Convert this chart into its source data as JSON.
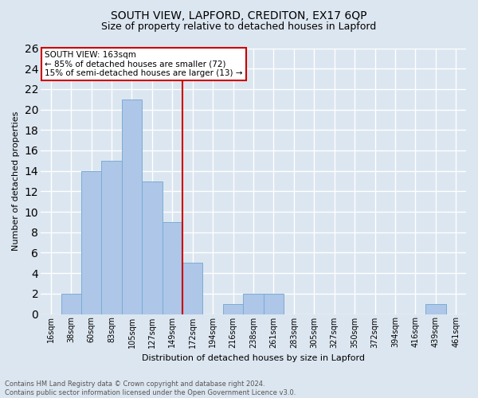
{
  "title": "SOUTH VIEW, LAPFORD, CREDITON, EX17 6QP",
  "subtitle": "Size of property relative to detached houses in Lapford",
  "xlabel": "Distribution of detached houses by size in Lapford",
  "ylabel": "Number of detached properties",
  "footer_line1": "Contains HM Land Registry data © Crown copyright and database right 2024.",
  "footer_line2": "Contains public sector information licensed under the Open Government Licence v3.0.",
  "categories": [
    "16sqm",
    "38sqm",
    "60sqm",
    "83sqm",
    "105sqm",
    "127sqm",
    "149sqm",
    "172sqm",
    "194sqm",
    "216sqm",
    "238sqm",
    "261sqm",
    "283sqm",
    "305sqm",
    "327sqm",
    "350sqm",
    "372sqm",
    "394sqm",
    "416sqm",
    "439sqm",
    "461sqm"
  ],
  "values": [
    0,
    2,
    14,
    15,
    21,
    13,
    9,
    5,
    0,
    1,
    2,
    2,
    0,
    0,
    0,
    0,
    0,
    0,
    0,
    1,
    0
  ],
  "bar_color": "#aec6e8",
  "bar_edge_color": "#7aadd4",
  "vline_index": 7,
  "vline_color": "#cc0000",
  "annotation_title": "SOUTH VIEW: 163sqm",
  "annotation_line2": "← 85% of detached houses are smaller (72)",
  "annotation_line3": "15% of semi-detached houses are larger (13) →",
  "annotation_box_color": "#ffffff",
  "annotation_box_edge": "#cc0000",
  "ylim": [
    0,
    26
  ],
  "yticks": [
    0,
    2,
    4,
    6,
    8,
    10,
    12,
    14,
    16,
    18,
    20,
    22,
    24,
    26
  ],
  "background_color": "#dce6f0",
  "plot_bg_color": "#dce6f0",
  "grid_color": "#ffffff",
  "title_fontsize": 10,
  "subtitle_fontsize": 9,
  "xlabel_fontsize": 8,
  "ylabel_fontsize": 8,
  "tick_fontsize": 7,
  "footer_fontsize": 6,
  "annotation_fontsize": 7.5
}
